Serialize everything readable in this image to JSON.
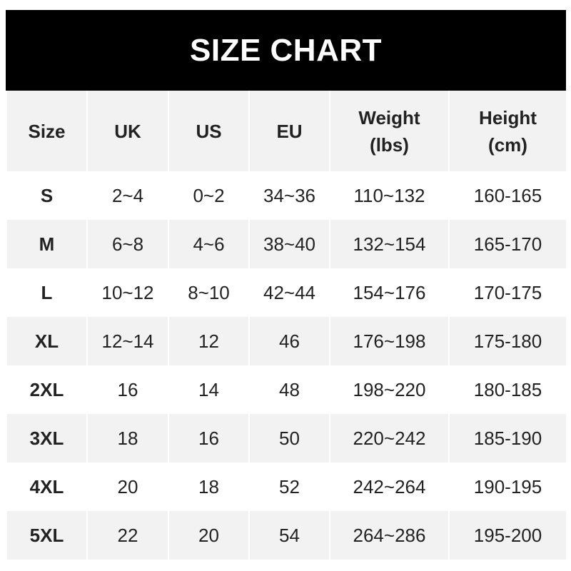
{
  "title": "SIZE CHART",
  "headers": [
    [
      "Size"
    ],
    [
      "UK"
    ],
    [
      "US"
    ],
    [
      "EU"
    ],
    [
      "Weight",
      "(lbs)"
    ],
    [
      "Height",
      "(cm)"
    ]
  ],
  "rows": [
    [
      "S",
      "2~4",
      "0~2",
      "34~36",
      "110~132",
      "160-165"
    ],
    [
      "M",
      "6~8",
      "4~6",
      "38~40",
      "132~154",
      "165-170"
    ],
    [
      "L",
      "10~12",
      "8~10",
      "42~44",
      "154~176",
      "170-175"
    ],
    [
      "XL",
      "12~14",
      "12",
      "46",
      "176~198",
      "175-180"
    ],
    [
      "2XL",
      "16",
      "14",
      "48",
      "198~220",
      "180-185"
    ],
    [
      "3XL",
      "18",
      "16",
      "50",
      "220~242",
      "185-190"
    ],
    [
      "4XL",
      "20",
      "18",
      "52",
      "242~264",
      "190-195"
    ],
    [
      "5XL",
      "22",
      "20",
      "54",
      "264~286",
      "195-200"
    ]
  ]
}
